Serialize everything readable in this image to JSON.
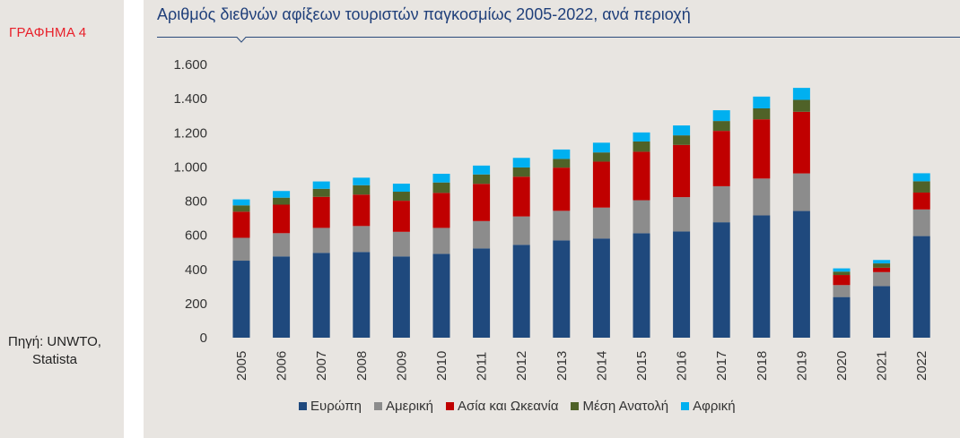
{
  "side": {
    "figure_label": "ΓΡΑΦΗΜΑ 4",
    "source_line1": "Πηγή: UNWTO,",
    "source_line2": "Statista"
  },
  "chart_data": {
    "type": "bar",
    "stacked": true,
    "title": "Αριθμός διεθνών αφίξεων τουριστών παγκοσμίως 2005-2022, ανά περιοχή",
    "xlabel": "",
    "ylabel": "",
    "ylim": [
      0,
      1600
    ],
    "yticks": [
      0,
      200,
      400,
      600,
      800,
      1000,
      1200,
      1400,
      1600
    ],
    "ytick_labels": [
      "0",
      "200",
      "400",
      "600",
      "800",
      "1.000",
      "1.200",
      "1.400",
      "1.600"
    ],
    "grid": false,
    "legend_position": "bottom",
    "categories": [
      "2005",
      "2006",
      "2007",
      "2008",
      "2009",
      "2010",
      "2011",
      "2012",
      "2013",
      "2014",
      "2015",
      "2016",
      "2017",
      "2018",
      "2019",
      "2020",
      "2021",
      "2022"
    ],
    "series": [
      {
        "name": "Ευρώπη",
        "color": "#1f497d",
        "values": [
          451,
          476,
          497,
          502,
          476,
          491,
          523,
          544,
          570,
          581,
          612,
          622,
          676,
          716,
          742,
          238,
          302,
          595
        ]
      },
      {
        "name": "Αμερική",
        "color": "#8c8c8c",
        "values": [
          134,
          136,
          146,
          152,
          144,
          152,
          160,
          166,
          173,
          181,
          193,
          201,
          211,
          216,
          220,
          70,
          82,
          156
        ]
      },
      {
        "name": "Ασία και Ωκεανία",
        "color": "#c00000",
        "values": [
          153,
          167,
          182,
          184,
          182,
          205,
          218,
          233,
          253,
          269,
          284,
          306,
          324,
          347,
          361,
          59,
          26,
          99
        ]
      },
      {
        "name": "Μέση Ανατολή",
        "color": "#4f6228",
        "values": [
          37,
          41,
          47,
          55,
          53,
          61,
          55,
          54,
          51,
          54,
          60,
          56,
          58,
          64,
          70,
          20,
          25,
          66
        ]
      },
      {
        "name": "Αφρική",
        "color": "#00b0f0",
        "values": [
          35,
          39,
          43,
          44,
          47,
          51,
          52,
          56,
          55,
          57,
          53,
          58,
          63,
          69,
          70,
          19,
          20,
          47
        ]
      }
    ]
  }
}
